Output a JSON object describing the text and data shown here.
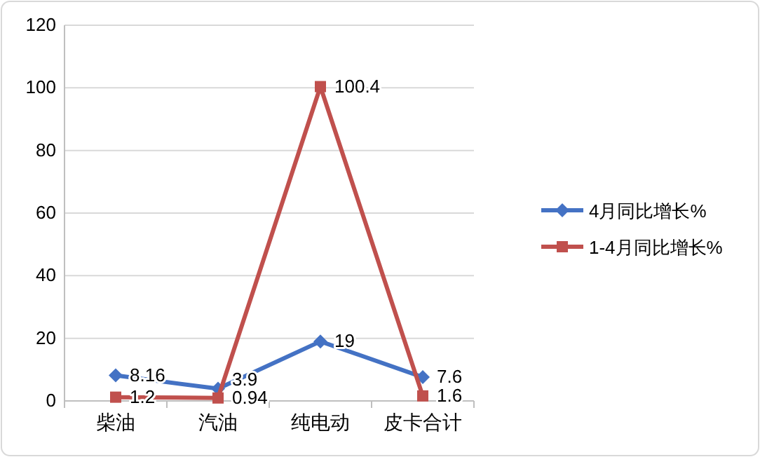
{
  "chart_data": {
    "type": "line",
    "categories": [
      "柴油",
      "汽油",
      "纯电动",
      "皮卡合计"
    ],
    "series": [
      {
        "name": "4月同比增长%",
        "color": "#4472c4",
        "marker": "diamond",
        "values": [
          8.16,
          3.9,
          19,
          7.6
        ]
      },
      {
        "name": "1-4月同比增长%",
        "color": "#c0504d",
        "marker": "square",
        "values": [
          1.2,
          0.94,
          100.4,
          1.6
        ]
      }
    ],
    "ylim": [
      0,
      120
    ],
    "yticks": [
      0,
      20,
      40,
      60,
      80,
      100,
      120
    ],
    "grid": "y",
    "legend": "right",
    "data_labels": true,
    "line_style": "solid"
  }
}
